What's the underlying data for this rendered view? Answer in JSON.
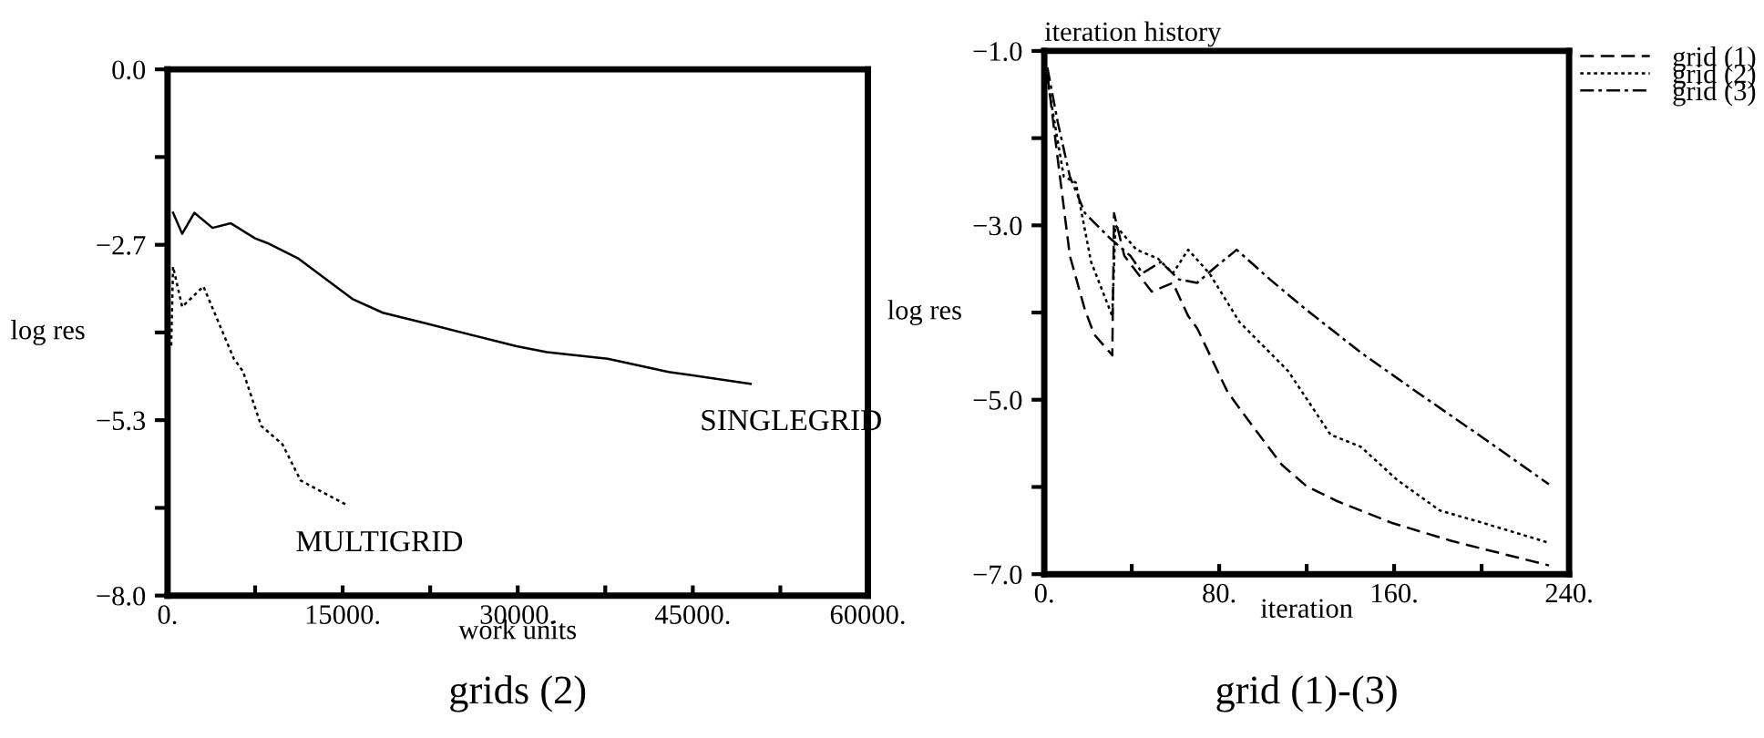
{
  "chart_data": [
    {
      "type": "line",
      "xlabel": "work units",
      "ylabel": "log res",
      "annotations": [
        "grids (2)"
      ],
      "xlim": [
        0,
        60000
      ],
      "ylim": [
        -8.0,
        0.0
      ],
      "xticks": [
        {
          "value": 0,
          "label": "0."
        },
        {
          "value": 7500,
          "label": null
        },
        {
          "value": 15000,
          "label": "15000."
        },
        {
          "value": 22500,
          "label": null
        },
        {
          "value": 30000,
          "label": "30000."
        },
        {
          "value": 37500,
          "label": null
        },
        {
          "value": 45000,
          "label": "45000."
        },
        {
          "value": 52500,
          "label": null
        },
        {
          "value": 60000,
          "label": "60000."
        }
      ],
      "yticks": [
        {
          "value": -8.0,
          "label": "−8.0"
        },
        {
          "value": -6.667,
          "label": null
        },
        {
          "value": -5.333,
          "label": "−5.3"
        },
        {
          "value": -4.0,
          "label": null
        },
        {
          "value": -2.667,
          "label": "−2.7"
        },
        {
          "value": -1.333,
          "label": null
        },
        {
          "value": 0.0,
          "label": "0.0"
        }
      ],
      "grid": false,
      "legend": false,
      "series": [
        {
          "name": "SINGLEGRID",
          "color": "#000000",
          "line_style": "solid",
          "x": [
            470,
            1250,
            2290,
            3850,
            5420,
            7500,
            8540,
            11150,
            15830,
            18440,
            22080,
            29900,
            32500,
            37710,
            42920,
            49950
          ],
          "values": [
            -2.18,
            -2.5,
            -2.18,
            -2.41,
            -2.34,
            -2.57,
            -2.64,
            -2.87,
            -3.49,
            -3.7,
            -3.86,
            -4.21,
            -4.3,
            -4.4,
            -4.6,
            -4.78
          ]
        },
        {
          "name": "MULTIGRID",
          "color": "#000000",
          "line_style": "dotted",
          "x": [
            310,
            470,
            1250,
            3070,
            5680,
            6460,
            8020,
            9840,
            11400,
            15310
          ],
          "values": [
            -4.2,
            -3.0,
            -3.61,
            -3.3,
            -4.4,
            -4.59,
            -5.42,
            -5.7,
            -6.25,
            -6.62
          ]
        }
      ]
    },
    {
      "type": "line",
      "title": "iteration history",
      "xlabel": "iteration",
      "ylabel": "log res",
      "annotations": [
        "grid (1)-(3)"
      ],
      "xlim": [
        0,
        240
      ],
      "ylim": [
        -7.0,
        -1.0
      ],
      "xticks": [
        {
          "value": 0,
          "label": "0."
        },
        {
          "value": 40,
          "label": null
        },
        {
          "value": 80,
          "label": "80."
        },
        {
          "value": 120,
          "label": null
        },
        {
          "value": 160,
          "label": "160."
        },
        {
          "value": 200,
          "label": null
        },
        {
          "value": 240,
          "label": "240."
        }
      ],
      "yticks": [
        {
          "value": -7.0,
          "label": "−7.0"
        },
        {
          "value": -6.0,
          "label": null
        },
        {
          "value": -5.0,
          "label": "−5.0"
        },
        {
          "value": -4.0,
          "label": null
        },
        {
          "value": -3.0,
          "label": "−3.0"
        },
        {
          "value": -2.0,
          "label": null
        },
        {
          "value": -1.0,
          "label": "−1.0"
        }
      ],
      "grid": false,
      "legend": "top right",
      "series": [
        {
          "name": "grid (1)",
          "color": "#000000",
          "line_style": "dashed",
          "x": [
            1.4,
            6.1,
            11.7,
            18.6,
            22.8,
            31.1,
            31.9,
            36.6,
            49.1,
            58.8,
            65.8,
            69.9,
            83.8,
            94.9,
            108.8,
            119.9,
            133.7,
            158.7,
            186.4,
            230.8
          ],
          "values": [
            -1.26,
            -2.23,
            -3.35,
            -3.97,
            -4.25,
            -4.49,
            -2.86,
            -3.35,
            -3.76,
            -3.66,
            -4.04,
            -4.18,
            -4.91,
            -5.29,
            -5.75,
            -5.99,
            -6.16,
            -6.41,
            -6.62,
            -6.9
          ]
        },
        {
          "name": "grid (2)",
          "color": "#000000",
          "line_style": "dotted",
          "x": [
            1.4,
            8.9,
            14.4,
            21.4,
            31.1,
            32.5,
            42.2,
            51.9,
            58.8,
            65.8,
            75.5,
            89.3,
            100.4,
            111.5,
            130.9,
            144.8,
            161.4,
            180.9,
            200.3,
            230.8
          ],
          "values": [
            -1.33,
            -2.44,
            -2.51,
            -3.42,
            -4.04,
            -3.0,
            -3.28,
            -3.38,
            -3.55,
            -3.28,
            -3.55,
            -4.11,
            -4.39,
            -4.67,
            -5.4,
            -5.54,
            -5.92,
            -6.27,
            -6.41,
            -6.64
          ]
        },
        {
          "name": "grid (3)",
          "color": "#000000",
          "line_style": "dashdot",
          "x": [
            1.4,
            6.1,
            11.7,
            18.6,
            29.7,
            39.4,
            44.9,
            53.3,
            61.6,
            69.9,
            78.2,
            88.0,
            103.2,
            119.9,
            144.8,
            172.6,
            200.3,
            230.8
          ],
          "values": [
            -1.19,
            -1.81,
            -2.44,
            -2.86,
            -3.14,
            -3.35,
            -3.55,
            -3.42,
            -3.62,
            -3.66,
            -3.48,
            -3.28,
            -3.62,
            -3.97,
            -4.46,
            -4.95,
            -5.43,
            -5.97
          ]
        }
      ]
    }
  ]
}
